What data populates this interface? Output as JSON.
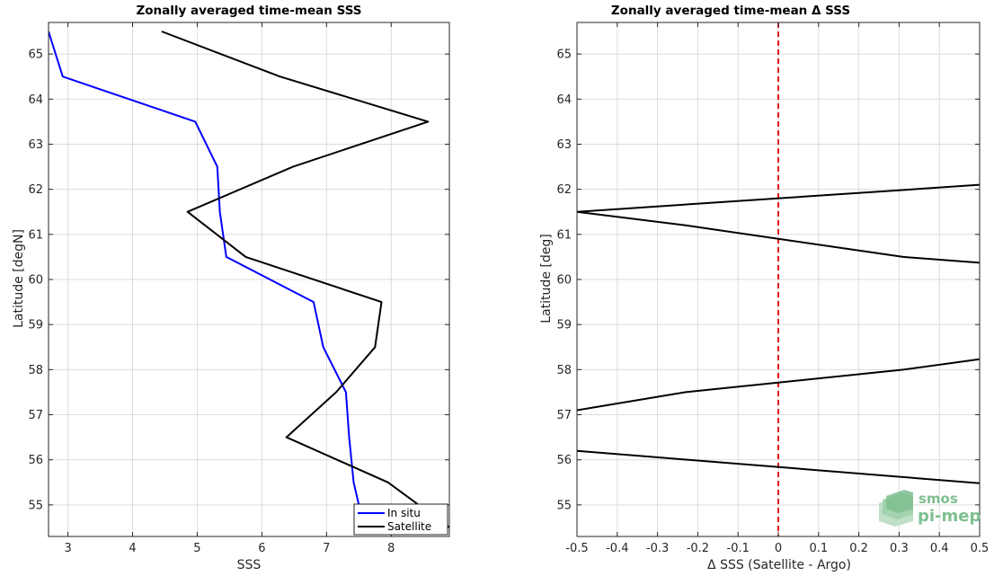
{
  "chart_data": [
    {
      "type": "line",
      "title": "Zonally averaged time-mean SSS",
      "xlabel": "SSS",
      "ylabel": "Latitude [degN]",
      "xlim": [
        2.7,
        8.9
      ],
      "ylim": [
        54.3,
        65.7
      ],
      "xticks": [
        3,
        4,
        5,
        6,
        7,
        8
      ],
      "yticks": [
        55,
        56,
        57,
        58,
        59,
        60,
        61,
        62,
        63,
        64,
        65
      ],
      "grid": true,
      "legend": "bottom-right",
      "series": [
        {
          "name": "In situ",
          "color": "#0000ff",
          "x": [
            2.7,
            2.92,
            4.97,
            5.31,
            5.35,
            5.45,
            6.8,
            6.95,
            7.3,
            7.35,
            7.42,
            7.5
          ],
          "y": [
            65.5,
            64.5,
            63.5,
            62.5,
            61.5,
            60.5,
            59.5,
            58.5,
            57.5,
            56.5,
            55.5,
            55.0
          ]
        },
        {
          "name": "Satellite",
          "color": "#000000",
          "x": [
            4.45,
            6.28,
            8.57,
            6.48,
            4.85,
            5.75,
            7.85,
            7.75,
            7.15,
            6.38,
            7.95,
            8.9
          ],
          "y": [
            65.5,
            64.5,
            63.5,
            62.5,
            61.5,
            60.5,
            59.5,
            58.5,
            57.5,
            56.5,
            55.5,
            54.5
          ]
        }
      ]
    },
    {
      "type": "line",
      "title": "Zonally averaged time-mean Δ SSS",
      "xlabel": "Δ SSS (Satellite - Argo)",
      "ylabel": "Latitude [deg]",
      "xlim": [
        -0.5,
        0.5
      ],
      "ylim": [
        54.3,
        65.7
      ],
      "xticks": [
        -0.5,
        -0.4,
        -0.3,
        -0.2,
        -0.1,
        0,
        0.1,
        0.2,
        0.3,
        0.4,
        0.5
      ],
      "xticklabels": [
        "-0.5",
        "-0.4",
        "-0.3",
        "-0.2",
        "-0.1",
        "0",
        "0.1",
        "0.2",
        "0.3",
        "0.4",
        "0.5"
      ],
      "yticks": [
        55,
        56,
        57,
        58,
        59,
        60,
        61,
        62,
        63,
        64,
        65
      ],
      "grid": true,
      "zero_line_color": "#e00000",
      "series": [
        {
          "color": "#000000",
          "x": [
            0.5,
            0.3,
            -0.5,
            -0.23,
            0.31,
            0.5
          ],
          "y": [
            62.1,
            61.98,
            61.5,
            61.2,
            60.5,
            60.37
          ]
        },
        {
          "color": "#000000",
          "x": [
            -0.5,
            -0.23,
            0.31,
            0.5
          ],
          "y": [
            57.1,
            57.5,
            58.0,
            58.23
          ]
        },
        {
          "color": "#000000",
          "x": [
            -0.5,
            0.5
          ],
          "y": [
            56.2,
            55.48
          ]
        }
      ]
    }
  ],
  "logo": {
    "line1": "smos",
    "line2": "pi-mep",
    "color": "#7fbf8f"
  }
}
